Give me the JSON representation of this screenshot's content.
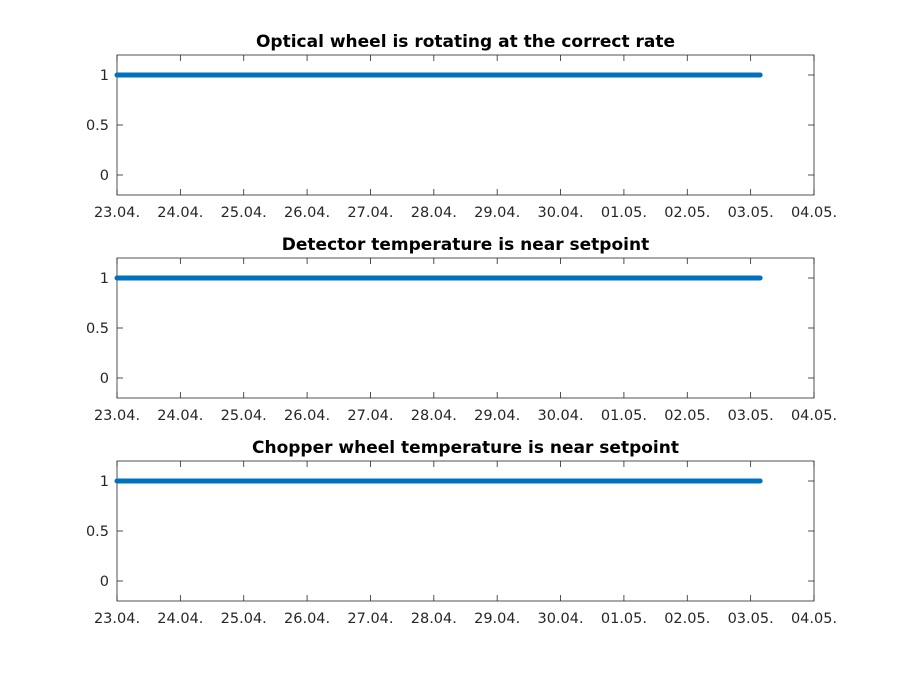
{
  "chart_data": [
    {
      "type": "scatter",
      "title": "Optical wheel is rotating at the correct rate",
      "xlabel": "",
      "ylabel": "",
      "x_ticks": [
        "23.04.",
        "24.04.",
        "25.04.",
        "26.04.",
        "27.04.",
        "28.04.",
        "29.04.",
        "30.04.",
        "01.05.",
        "02.05.",
        "03.05.",
        "04.05."
      ],
      "y_ticks": [
        "0",
        "0.5",
        "1"
      ],
      "xlim": [
        "23.04.",
        "04.05."
      ],
      "ylim": [
        -0.2,
        1.2
      ],
      "grid": false,
      "series": [
        {
          "color": "#0072BD",
          "x_start": "23.04.",
          "x_end": "03.05.",
          "x_end_frac_days": 0.15,
          "value": 1
        }
      ]
    },
    {
      "type": "scatter",
      "title": "Detector temperature is near setpoint",
      "xlabel": "",
      "ylabel": "",
      "x_ticks": [
        "23.04.",
        "24.04.",
        "25.04.",
        "26.04.",
        "27.04.",
        "28.04.",
        "29.04.",
        "30.04.",
        "01.05.",
        "02.05.",
        "03.05.",
        "04.05."
      ],
      "y_ticks": [
        "0",
        "0.5",
        "1"
      ],
      "xlim": [
        "23.04.",
        "04.05."
      ],
      "ylim": [
        -0.2,
        1.2
      ],
      "grid": false,
      "series": [
        {
          "color": "#0072BD",
          "x_start": "23.04.",
          "x_end": "03.05.",
          "x_end_frac_days": 0.15,
          "value": 1
        }
      ]
    },
    {
      "type": "scatter",
      "title": "Chopper wheel temperature is near setpoint",
      "xlabel": "",
      "ylabel": "",
      "x_ticks": [
        "23.04.",
        "24.04.",
        "25.04.",
        "26.04.",
        "27.04.",
        "28.04.",
        "29.04.",
        "30.04.",
        "01.05.",
        "02.05.",
        "03.05.",
        "04.05."
      ],
      "y_ticks": [
        "0",
        "0.5",
        "1"
      ],
      "xlim": [
        "23.04.",
        "04.05."
      ],
      "ylim": [
        -0.2,
        1.2
      ],
      "grid": false,
      "series": [
        {
          "color": "#0072BD",
          "x_start": "23.04.",
          "x_end": "03.05.",
          "x_end_frac_days": 0.15,
          "value": 1
        }
      ]
    }
  ]
}
